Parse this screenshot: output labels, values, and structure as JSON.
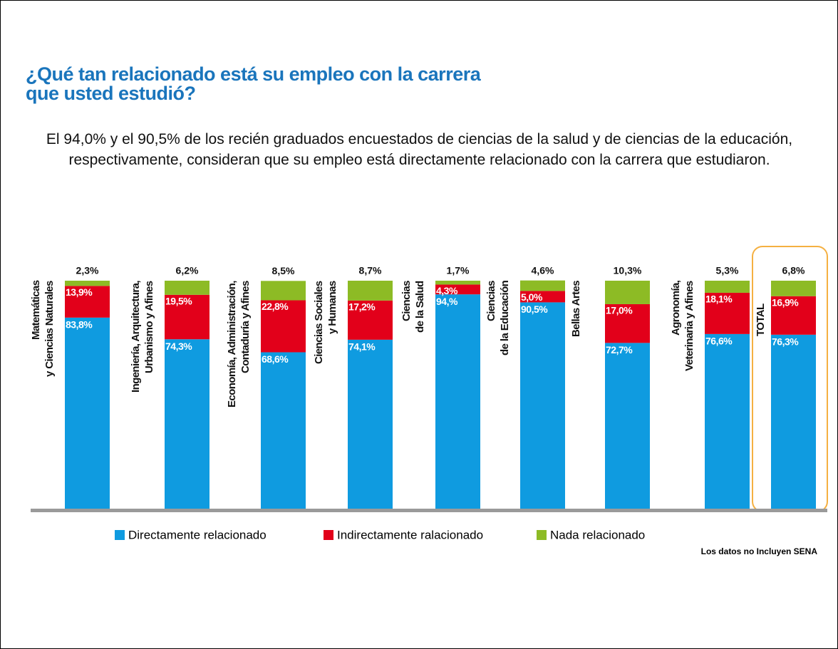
{
  "chart_data": {
    "type": "stacked-bar",
    "title": "¿Qué tan relacionado está su empleo con la carrera que usted estudió?",
    "subtitle": "El 94,0% y el 90,5% de los recién graduados encuestados de ciencias de la salud y de ciencias de la educación, respectivamente, consideran que su empleo está directamente relacionado con la carrera que estudiaron.",
    "categories": [
      "Matemáticas\ny Ciencias Naturales",
      "Ingeniería, Arquitectura,\nUrbanismo y Afines",
      "Economía, Administración,\nContaduría y Afines",
      "Ciencias Sociales\ny Humanas",
      "Ciencias\nde la Salud",
      "Ciencias\nde la Educación",
      "Bellas Artes",
      "Agronomía,\nVeterinaria y Afines",
      "TOTAL"
    ],
    "ylim": [
      0,
      100
    ],
    "series": [
      {
        "name": "Directamente relacionado",
        "color": "#0f9be0",
        "values": [
          83.8,
          74.3,
          68.6,
          74.1,
          94,
          90.5,
          72.7,
          76.6,
          76.3
        ],
        "value_labels": [
          "83,8%",
          "74,3%",
          "68,6%",
          "74,1%",
          "94,%",
          "90,5%",
          "72,7%",
          "76,6%",
          "76,3%"
        ]
      },
      {
        "name": "Indirectamente ralacionado",
        "color": "#e2001a",
        "values": [
          13.9,
          19.5,
          22.8,
          17.2,
          4.3,
          5.0,
          17.0,
          18.1,
          16.9
        ],
        "value_labels": [
          "13,9%",
          "19,5%",
          "22,8%",
          "17,2%",
          "4,3%",
          "5,0%",
          "17,0%",
          "18,1%",
          "16,9%"
        ]
      },
      {
        "name": "Nada relacionado",
        "color": "#8dbb25",
        "values": [
          2.3,
          6.2,
          8.5,
          8.7,
          1.7,
          4.6,
          10.3,
          5.3,
          6.8
        ],
        "value_labels": [
          "2,3%",
          "6,2%",
          "8,5%",
          "8,7%",
          "1,7%",
          "4,6%",
          "10,3%",
          "5,3%",
          "6,8%"
        ]
      }
    ],
    "note": "Los datos no Incluyen SENA"
  }
}
